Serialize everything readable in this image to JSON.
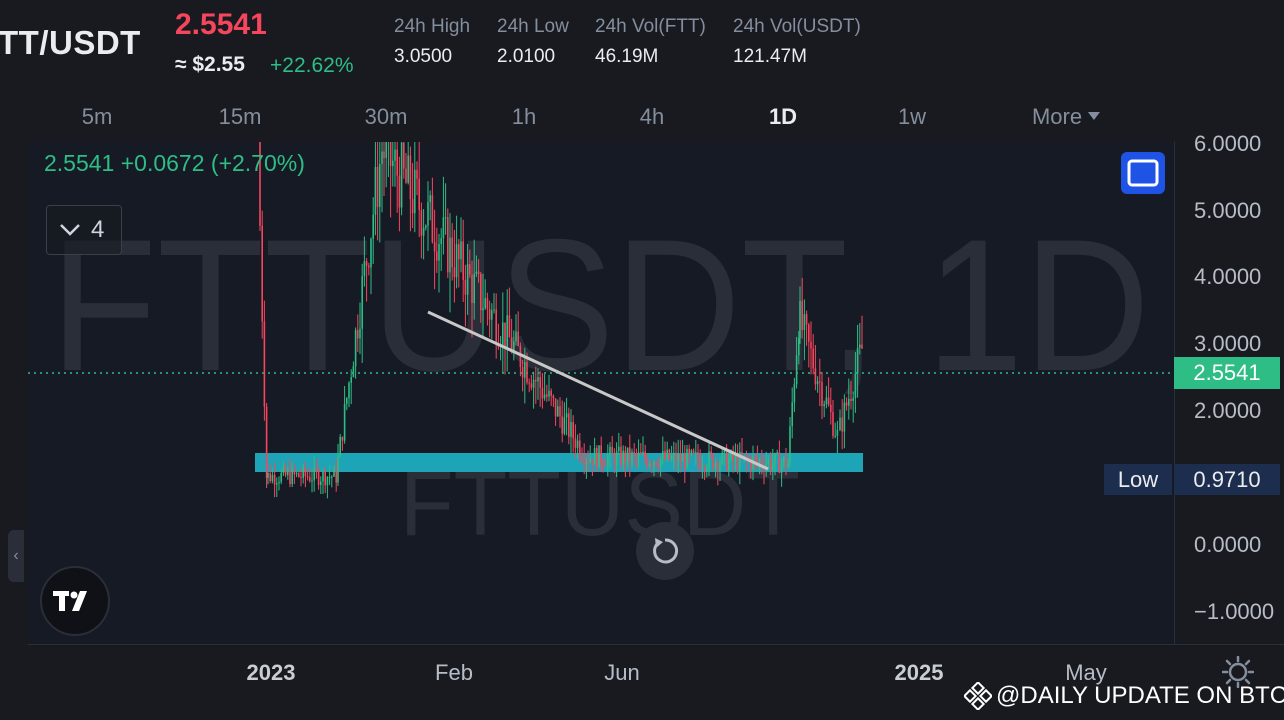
{
  "header": {
    "pair": "TT/USDT",
    "last_price": "2.5541",
    "approx_usd": "≈ $2.55",
    "change_pct": "+22.62%",
    "stats": [
      {
        "label": "24h High",
        "value": "3.0500"
      },
      {
        "label": "24h Low",
        "value": "2.0100"
      },
      {
        "label": "24h Vol(FTT)",
        "value": "46.19M"
      },
      {
        "label": "24h Vol(USDT)",
        "value": "121.47M"
      }
    ]
  },
  "intervals": {
    "tabs": [
      "5m",
      "15m",
      "30m",
      "1h",
      "4h",
      "1D",
      "1w",
      "More"
    ],
    "active": "1D"
  },
  "legend": {
    "text": "2.5541  +0.0672 (+2.70%)",
    "indicator_count": "4"
  },
  "watermark": {
    "large": "FTTUSDT, 1D",
    "small": "FTTUSDT"
  },
  "price_axis": {
    "ticks": [
      "6.0000",
      "5.0000",
      "4.0000",
      "3.0000",
      "2.0000",
      "0.0000",
      "−1.0000"
    ],
    "current_price_badge": "2.5541",
    "low_label": "Low",
    "low_value": "0.9710"
  },
  "time_axis": {
    "ticks": [
      {
        "label": "2023",
        "bold": true
      },
      {
        "label": "Feb",
        "bold": false
      },
      {
        "label": "Jun",
        "bold": false
      },
      {
        "label": "2025",
        "bold": true
      },
      {
        "label": "May",
        "bold": false
      }
    ]
  },
  "credit": "@DAILY UPDATE ON BTC",
  "colors": {
    "up": "#2ebd85",
    "down": "#f6465d",
    "support_zone": "#1eb4c6",
    "trendline": "#c8c8c8",
    "accent_button": "#1e53e5"
  },
  "chart_data": {
    "type": "candlestick",
    "symbol": "FTTUSDT",
    "interval": "1D",
    "ylim": [
      -1.0,
      6.0
    ],
    "current_price": 2.5541,
    "price_range_low": 0.971,
    "trend_segments": [
      {
        "period": "late 2022",
        "start": 6.0,
        "end": 1.0,
        "note": "crash"
      },
      {
        "period": "2022-12 to 2023-01",
        "start": 1.0,
        "end": 1.0
      },
      {
        "period": "2023-01 to 2023-02",
        "start": 1.0,
        "end": 5.9
      },
      {
        "period": "2023-02 to 2023-06",
        "start": 5.9,
        "end": 1.3
      },
      {
        "period": "2023-06 to 2024-02",
        "start": 1.3,
        "end": 1.2
      },
      {
        "period": "2024-02 to 2024-03",
        "start": 1.2,
        "end": 3.4
      },
      {
        "period": "2024-03 to 2024-05",
        "start": 3.4,
        "end": 1.6
      },
      {
        "period": "2024-05",
        "start": 1.6,
        "end": 2.9
      }
    ],
    "annotations": [
      {
        "type": "descending_trendline",
        "from": 3.5,
        "to": 1.15
      },
      {
        "type": "support_zone",
        "low": 0.95,
        "high": 1.2
      }
    ]
  }
}
